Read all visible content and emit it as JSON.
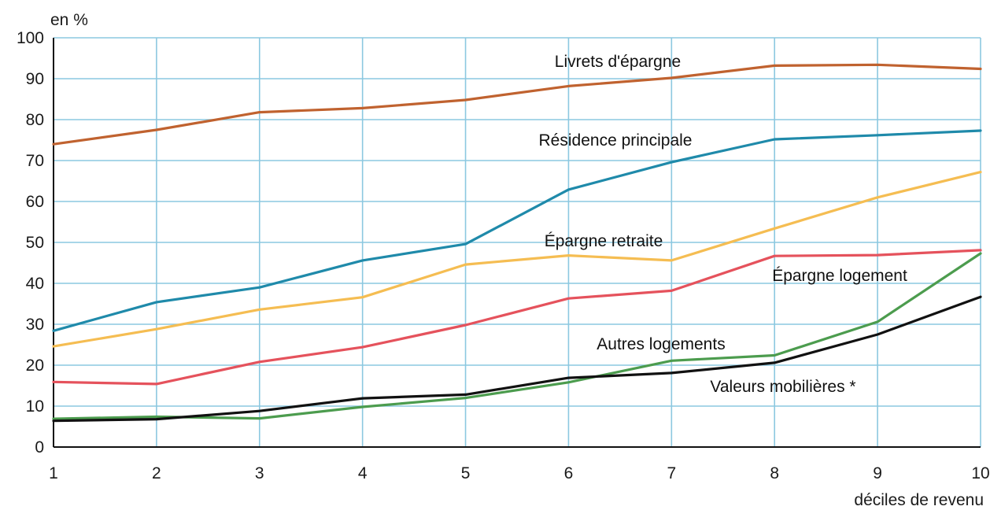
{
  "chart_data": {
    "type": "line",
    "title": "",
    "ylabel": "en %",
    "xlabel": "déciles de revenu",
    "x": [
      1,
      2,
      3,
      4,
      5,
      6,
      7,
      8,
      9,
      10
    ],
    "xlim": [
      1,
      10
    ],
    "ylim": [
      0,
      100
    ],
    "x_ticks": [
      "1",
      "2",
      "3",
      "4",
      "5",
      "6",
      "7",
      "8",
      "9",
      "10"
    ],
    "y_ticks": [
      "0",
      "10",
      "20",
      "30",
      "40",
      "50",
      "60",
      "70",
      "80",
      "90",
      "100"
    ],
    "grid": true,
    "legend": "none",
    "series": [
      {
        "name": "Livrets d'épargne",
        "color": "#c0622f",
        "values": [
          74,
          77.5,
          81.8,
          82.8,
          84.8,
          88.2,
          90.2,
          93.2,
          93.4,
          92.4
        ]
      },
      {
        "name": "Résidence principale",
        "color": "#1f8aaa",
        "values": [
          28.4,
          35.4,
          39,
          45.6,
          49.6,
          62.9,
          69.6,
          75.2,
          76.2,
          77.3
        ]
      },
      {
        "name": "Épargne retraite",
        "color": "#f5bd52",
        "values": [
          24.6,
          28.8,
          33.6,
          36.6,
          44.6,
          46.8,
          45.6,
          53.4,
          61,
          67.2
        ]
      },
      {
        "name": "Épargne logement",
        "color": "#e5525c",
        "values": [
          15.9,
          15.4,
          20.8,
          24.4,
          29.8,
          36.3,
          38.2,
          46.7,
          46.9,
          48.1
        ]
      },
      {
        "name": "Autres logements",
        "color": "#4c9c4e",
        "values": [
          6.9,
          7.4,
          7,
          9.8,
          12,
          15.8,
          21.1,
          22.4,
          30.6,
          47.3
        ]
      },
      {
        "name": "Valeurs mobilières *",
        "color": "#111111",
        "values": [
          6.4,
          6.8,
          8.8,
          11.9,
          12.8,
          16.9,
          18.1,
          20.6,
          27.5,
          36.7
        ]
      }
    ]
  }
}
